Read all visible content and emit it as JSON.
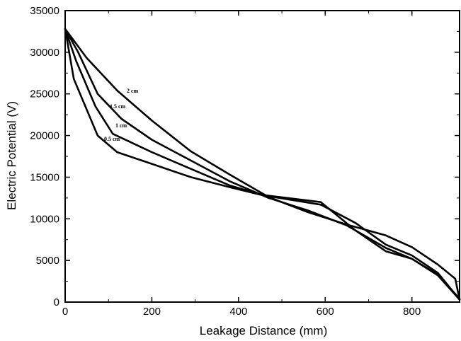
{
  "chart_data": {
    "type": "line",
    "title": "",
    "xlabel": "Leakage Distance (mm)",
    "ylabel": "Electric Potential (V)",
    "xlim": [
      0,
      910
    ],
    "ylim": [
      0,
      35000
    ],
    "x_ticks": [
      0,
      200,
      400,
      600,
      800
    ],
    "y_ticks": [
      0,
      5000,
      10000,
      15000,
      20000,
      25000,
      30000,
      35000
    ],
    "grid": false,
    "legend": "none",
    "series": [
      {
        "name": "2 cm",
        "x": [
          0,
          50,
          120,
          200,
          290,
          380,
          470,
          560,
          650,
          740,
          800,
          860,
          900,
          910
        ],
        "y": [
          32800,
          29300,
          25400,
          21800,
          18100,
          15300,
          12600,
          10800,
          9300,
          8000,
          6600,
          4500,
          2800,
          300
        ]
      },
      {
        "name": "1.5 cm",
        "x": [
          0,
          30,
          75,
          130,
          200,
          290,
          380,
          470,
          560,
          650,
          740,
          800,
          860,
          910
        ],
        "y": [
          32800,
          30000,
          25000,
          22000,
          19500,
          17000,
          14500,
          12500,
          11000,
          9200,
          6500,
          5200,
          3300,
          400
        ]
      },
      {
        "name": "1 cm",
        "x": [
          0,
          25,
          70,
          110,
          200,
          290,
          380,
          460,
          590,
          670,
          740,
          800,
          860,
          910
        ],
        "y": [
          32800,
          29000,
          23500,
          20200,
          18000,
          16000,
          14000,
          12800,
          11700,
          9500,
          6900,
          5600,
          3500,
          300
        ]
      },
      {
        "name": "0.5 cm",
        "x": [
          0,
          20,
          75,
          120,
          200,
          290,
          380,
          450,
          590,
          670,
          740,
          800,
          860,
          910
        ],
        "y": [
          32800,
          26800,
          20000,
          18000,
          16600,
          15000,
          13800,
          12900,
          12000,
          8600,
          6100,
          5200,
          3200,
          300
        ]
      }
    ],
    "annotations": [
      "2 cm",
      "1.5 cm",
      "1 cm",
      "0.5 cm"
    ]
  }
}
